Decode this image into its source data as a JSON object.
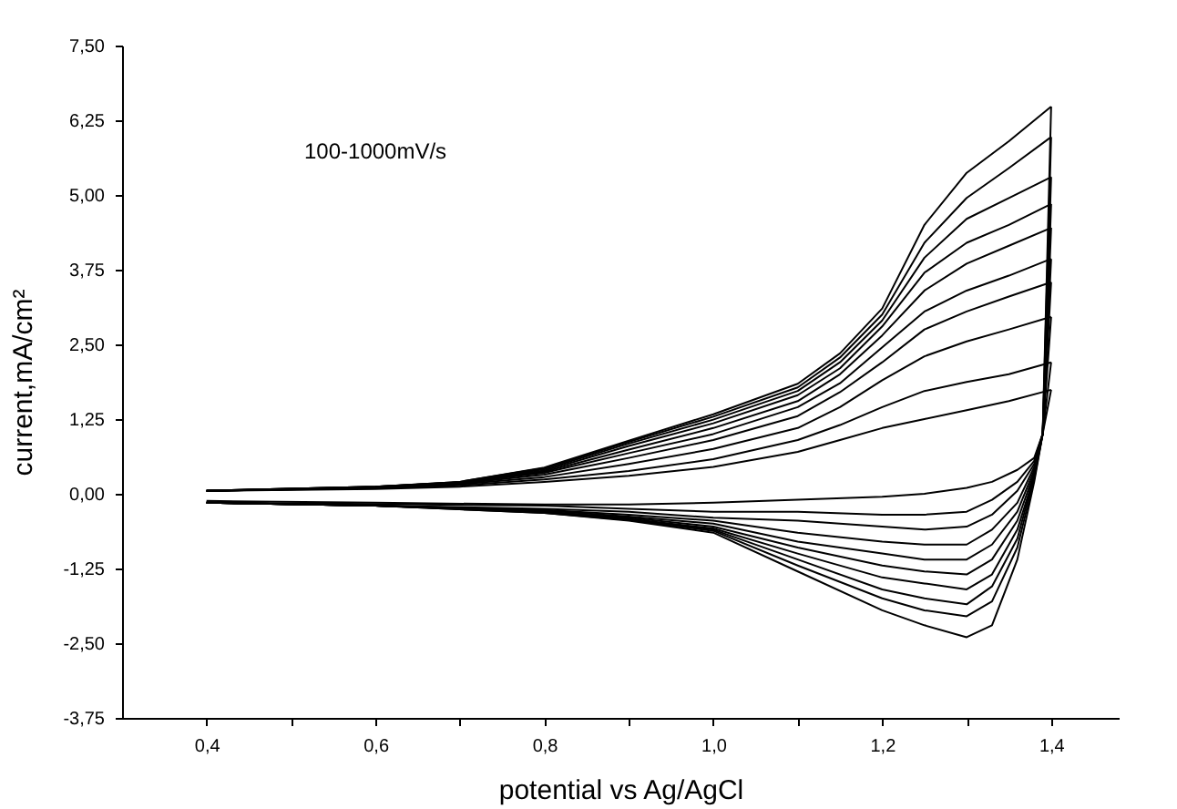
{
  "chart_data": {
    "type": "line",
    "xlabel": "potential vs Ag/AgCl",
    "ylabel": "current,mA/cm²",
    "annotations": [
      "100-1000mV/s"
    ],
    "xlim": [
      0.3,
      1.48
    ],
    "ylim": [
      -3.75,
      7.5
    ],
    "xticks": [
      {
        "value": 0.4,
        "label": "0,4"
      },
      {
        "value": 0.5,
        "label": null
      },
      {
        "value": 0.6,
        "label": "0,6"
      },
      {
        "value": 0.7,
        "label": null
      },
      {
        "value": 0.8,
        "label": "0,8"
      },
      {
        "value": 0.9,
        "label": null
      },
      {
        "value": 1.0,
        "label": "1,0"
      },
      {
        "value": 1.1,
        "label": null
      },
      {
        "value": 1.2,
        "label": "1,2"
      },
      {
        "value": 1.3,
        "label": null
      },
      {
        "value": 1.4,
        "label": "1,4"
      }
    ],
    "yticks": [
      {
        "value": -3.75,
        "label": "-3,75"
      },
      {
        "value": -2.5,
        "label": "-2,50"
      },
      {
        "value": -1.25,
        "label": "-1,25"
      },
      {
        "value": 0,
        "label": "0,00"
      },
      {
        "value": 1.25,
        "label": "1,25"
      },
      {
        "value": 2.5,
        "label": "2,50"
      },
      {
        "value": 3.75,
        "label": "3,75"
      },
      {
        "value": 5,
        "label": "5,00"
      },
      {
        "value": 6.25,
        "label": "6,25"
      },
      {
        "value": 7.5,
        "label": "7,50"
      }
    ],
    "grid": false,
    "legend": false,
    "marker": "none",
    "line_style": "solid",
    "series": [
      {
        "color": "#000000",
        "x": [
          0.4,
          0.6,
          0.7,
          0.8,
          0.9,
          1.0,
          1.1,
          1.15,
          1.2,
          1.25,
          1.3,
          1.35,
          1.4
        ],
        "values": [
          0.05,
          0.08,
          0.12,
          0.2,
          0.3,
          0.45,
          0.7,
          0.9,
          1.1,
          1.25,
          1.4,
          1.55,
          1.74
        ]
      },
      {
        "color": "#000000",
        "x": [
          0.4,
          0.6,
          0.7,
          0.8,
          0.9,
          1.0,
          1.1,
          1.15,
          1.2,
          1.25,
          1.3,
          1.35,
          1.4
        ],
        "values": [
          0.05,
          0.09,
          0.14,
          0.24,
          0.38,
          0.58,
          0.9,
          1.15,
          1.45,
          1.72,
          1.87,
          2.0,
          2.2
        ]
      },
      {
        "color": "#000000",
        "x": [
          0.4,
          0.6,
          0.7,
          0.8,
          0.9,
          1.0,
          1.1,
          1.15,
          1.2,
          1.25,
          1.3,
          1.35,
          1.4
        ],
        "values": [
          0.05,
          0.1,
          0.16,
          0.28,
          0.5,
          0.75,
          1.1,
          1.45,
          1.9,
          2.3,
          2.55,
          2.75,
          2.96
        ]
      },
      {
        "color": "#000000",
        "x": [
          0.4,
          0.6,
          0.7,
          0.8,
          0.9,
          1.0,
          1.1,
          1.15,
          1.2,
          1.25,
          1.3,
          1.35,
          1.4
        ],
        "values": [
          0.05,
          0.1,
          0.17,
          0.32,
          0.6,
          0.9,
          1.3,
          1.7,
          2.2,
          2.75,
          3.05,
          3.3,
          3.54
        ]
      },
      {
        "color": "#000000",
        "x": [
          0.4,
          0.6,
          0.7,
          0.8,
          0.9,
          1.0,
          1.1,
          1.15,
          1.2,
          1.25,
          1.3,
          1.35,
          1.4
        ],
        "values": [
          0.05,
          0.11,
          0.18,
          0.35,
          0.68,
          1.0,
          1.45,
          1.85,
          2.45,
          3.05,
          3.4,
          3.65,
          3.93
        ]
      },
      {
        "color": "#000000",
        "x": [
          0.4,
          0.6,
          0.7,
          0.8,
          0.9,
          1.0,
          1.1,
          1.15,
          1.2,
          1.25,
          1.3,
          1.35,
          1.4
        ],
        "values": [
          0.05,
          0.11,
          0.18,
          0.37,
          0.74,
          1.1,
          1.55,
          2.0,
          2.65,
          3.4,
          3.85,
          4.15,
          4.45
        ]
      },
      {
        "color": "#000000",
        "x": [
          0.4,
          0.6,
          0.7,
          0.8,
          0.9,
          1.0,
          1.1,
          1.15,
          1.2,
          1.25,
          1.3,
          1.35,
          1.4
        ],
        "values": [
          0.05,
          0.12,
          0.19,
          0.39,
          0.8,
          1.18,
          1.65,
          2.1,
          2.8,
          3.7,
          4.2,
          4.5,
          4.85
        ]
      },
      {
        "color": "#000000",
        "x": [
          0.4,
          0.6,
          0.7,
          0.8,
          0.9,
          1.0,
          1.1,
          1.15,
          1.2,
          1.25,
          1.3,
          1.35,
          1.4
        ],
        "values": [
          0.05,
          0.12,
          0.19,
          0.41,
          0.84,
          1.24,
          1.72,
          2.2,
          2.9,
          3.95,
          4.6,
          4.95,
          5.3
        ]
      },
      {
        "color": "#000000",
        "x": [
          0.4,
          0.6,
          0.7,
          0.8,
          0.9,
          1.0,
          1.1,
          1.15,
          1.2,
          1.25,
          1.3,
          1.35,
          1.4
        ],
        "values": [
          0.05,
          0.12,
          0.2,
          0.43,
          0.87,
          1.29,
          1.78,
          2.28,
          3.0,
          4.2,
          4.95,
          5.45,
          5.97
        ]
      },
      {
        "color": "#000000",
        "x": [
          0.4,
          0.6,
          0.7,
          0.8,
          0.9,
          1.0,
          1.1,
          1.15,
          1.2,
          1.25,
          1.3,
          1.35,
          1.4
        ],
        "values": [
          0.05,
          0.12,
          0.2,
          0.44,
          0.89,
          1.33,
          1.84,
          2.35,
          3.1,
          4.5,
          5.37,
          5.9,
          6.48
        ]
      },
      {
        "color": "#000000",
        "x": [
          0.4,
          0.6,
          0.8,
          0.9,
          1.0,
          1.1,
          1.2,
          1.25,
          1.3,
          1.33,
          1.36,
          1.38,
          1.39,
          1.4
        ],
        "values": [
          -0.12,
          -0.15,
          -0.18,
          -0.18,
          -0.15,
          -0.1,
          -0.05,
          0.0,
          0.1,
          0.2,
          0.4,
          0.6,
          1.0,
          1.74
        ]
      },
      {
        "color": "#000000",
        "x": [
          0.4,
          0.6,
          0.8,
          0.9,
          1.0,
          1.1,
          1.2,
          1.25,
          1.3,
          1.33,
          1.36,
          1.38,
          1.39,
          1.4
        ],
        "values": [
          -0.15,
          -0.17,
          -0.2,
          -0.25,
          -0.3,
          -0.3,
          -0.35,
          -0.35,
          -0.3,
          -0.1,
          0.2,
          0.55,
          1.0,
          2.2
        ]
      },
      {
        "color": "#000000",
        "x": [
          0.4,
          0.6,
          0.8,
          0.9,
          1.0,
          1.1,
          1.2,
          1.25,
          1.3,
          1.33,
          1.36,
          1.38,
          1.39,
          1.4
        ],
        "values": [
          -0.15,
          -0.2,
          -0.25,
          -0.3,
          -0.4,
          -0.45,
          -0.55,
          -0.6,
          -0.55,
          -0.35,
          0.05,
          0.5,
          1.0,
          2.96
        ]
      },
      {
        "color": "#000000",
        "x": [
          0.4,
          0.6,
          0.8,
          0.9,
          1.0,
          1.1,
          1.2,
          1.25,
          1.3,
          1.33,
          1.36,
          1.38,
          1.39,
          1.4
        ],
        "values": [
          -0.15,
          -0.2,
          -0.27,
          -0.35,
          -0.45,
          -0.65,
          -0.8,
          -0.85,
          -0.85,
          -0.6,
          -0.15,
          0.45,
          1.0,
          3.54
        ]
      },
      {
        "color": "#000000",
        "x": [
          0.4,
          0.6,
          0.8,
          0.9,
          1.0,
          1.1,
          1.2,
          1.25,
          1.3,
          1.33,
          1.36,
          1.38,
          1.39,
          1.4
        ],
        "values": [
          -0.15,
          -0.2,
          -0.28,
          -0.38,
          -0.5,
          -0.8,
          -1.0,
          -1.1,
          -1.1,
          -0.85,
          -0.3,
          0.4,
          1.0,
          3.93
        ]
      },
      {
        "color": "#000000",
        "x": [
          0.4,
          0.6,
          0.8,
          0.9,
          1.0,
          1.1,
          1.2,
          1.25,
          1.3,
          1.33,
          1.36,
          1.38,
          1.39,
          1.4
        ],
        "values": [
          -0.15,
          -0.2,
          -0.3,
          -0.4,
          -0.55,
          -0.9,
          -1.2,
          -1.3,
          -1.35,
          -1.1,
          -0.45,
          0.35,
          1.0,
          4.45
        ]
      },
      {
        "color": "#000000",
        "x": [
          0.4,
          0.6,
          0.8,
          0.9,
          1.0,
          1.1,
          1.2,
          1.25,
          1.3,
          1.33,
          1.36,
          1.38,
          1.39,
          1.4
        ],
        "values": [
          -0.15,
          -0.2,
          -0.3,
          -0.42,
          -0.58,
          -1.0,
          -1.4,
          -1.5,
          -1.6,
          -1.35,
          -0.6,
          0.3,
          1.0,
          4.85
        ]
      },
      {
        "color": "#000000",
        "x": [
          0.4,
          0.6,
          0.8,
          0.9,
          1.0,
          1.1,
          1.2,
          1.25,
          1.3,
          1.33,
          1.36,
          1.38,
          1.39,
          1.4
        ],
        "values": [
          -0.15,
          -0.2,
          -0.3,
          -0.43,
          -0.6,
          -1.1,
          -1.6,
          -1.75,
          -1.85,
          -1.55,
          -0.75,
          0.3,
          1.0,
          5.3
        ]
      },
      {
        "color": "#000000",
        "x": [
          0.4,
          0.6,
          0.8,
          0.9,
          1.0,
          1.1,
          1.2,
          1.25,
          1.3,
          1.33,
          1.36,
          1.38,
          1.39,
          1.4
        ],
        "values": [
          -0.15,
          -0.2,
          -0.32,
          -0.44,
          -0.62,
          -1.2,
          -1.75,
          -1.95,
          -2.05,
          -1.8,
          -0.9,
          0.25,
          1.0,
          5.97
        ]
      },
      {
        "color": "#000000",
        "x": [
          0.4,
          0.6,
          0.8,
          0.9,
          1.0,
          1.1,
          1.2,
          1.25,
          1.3,
          1.33,
          1.36,
          1.38,
          1.39,
          1.4
        ],
        "values": [
          -0.15,
          -0.2,
          -0.32,
          -0.45,
          -0.65,
          -1.3,
          -1.95,
          -2.2,
          -2.4,
          -2.2,
          -1.1,
          0.2,
          1.0,
          6.48
        ]
      }
    ]
  }
}
